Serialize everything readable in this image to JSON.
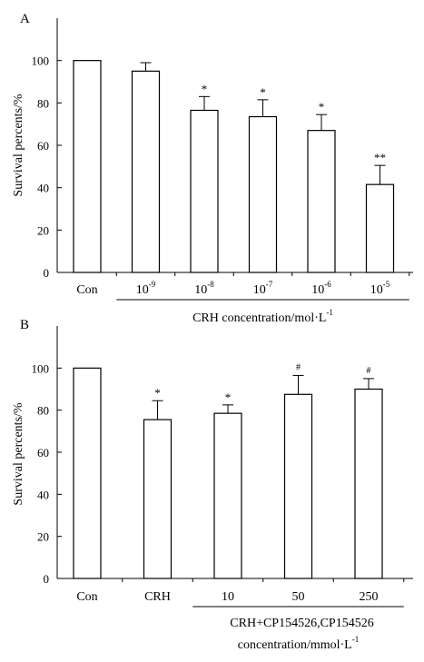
{
  "chart_data": [
    {
      "panel": "A",
      "type": "bar",
      "ylabel": "Survival percents/%",
      "ylim": [
        0,
        120
      ],
      "yticks": [
        0,
        20,
        40,
        60,
        80,
        100
      ],
      "categories": [
        {
          "base": "Con",
          "sup": ""
        },
        {
          "base": "10",
          "sup": "-9"
        },
        {
          "base": "10",
          "sup": "-8"
        },
        {
          "base": "10",
          "sup": "-7"
        },
        {
          "base": "10",
          "sup": "-6"
        },
        {
          "base": "10",
          "sup": "-5"
        }
      ],
      "values": [
        100,
        95,
        76.5,
        73.5,
        67,
        41.5
      ],
      "errors": [
        0,
        4,
        6.5,
        8,
        7.5,
        9
      ],
      "significance": [
        "",
        "",
        "*",
        "*",
        "*",
        "**"
      ],
      "group_label": {
        "base": "CRH concentration/mol·L",
        "sup": "-1"
      },
      "group_span": [
        1,
        5
      ]
    },
    {
      "panel": "B",
      "type": "bar",
      "ylabel": "Survival percents/%",
      "ylim": [
        0,
        120
      ],
      "yticks": [
        0,
        20,
        40,
        60,
        80,
        100
      ],
      "categories": [
        {
          "base": "Con",
          "sup": ""
        },
        {
          "base": "CRH",
          "sup": ""
        },
        {
          "base": "10",
          "sup": ""
        },
        {
          "base": "50",
          "sup": ""
        },
        {
          "base": "250",
          "sup": ""
        }
      ],
      "values": [
        100,
        75.5,
        78.5,
        87.5,
        90
      ],
      "errors": [
        0,
        9,
        4,
        9,
        5
      ],
      "significance": [
        "",
        "*",
        "*",
        "#",
        "#"
      ],
      "group_label_line1": "CRH+CP154526,CP154526",
      "group_label": {
        "base": "concentration/mmol·L",
        "sup": "-1"
      },
      "group_span": [
        2,
        4
      ]
    }
  ]
}
